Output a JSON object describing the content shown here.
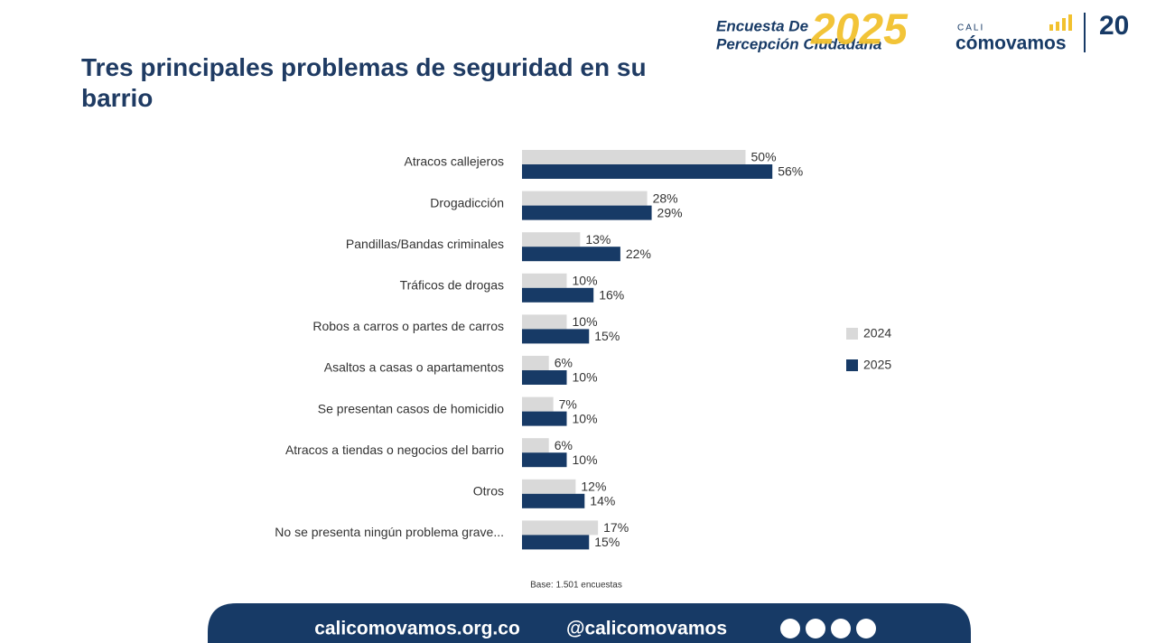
{
  "header": {
    "survey_line1": "Encuesta De",
    "survey_line2": "Percepción Ciudadana",
    "survey_year": "2025",
    "brand_city": "CALI",
    "brand_name": "cómovamos",
    "anniversary": "20"
  },
  "chart_data": {
    "type": "bar",
    "orientation": "horizontal",
    "title": "Tres principales problemas de seguridad en su barrio",
    "categories": [
      "Atracos callejeros",
      "Drogadicción",
      "Pandillas/Bandas criminales",
      "Tráficos de drogas",
      "Robos a carros o partes de carros",
      "Asaltos a casas o apartamentos",
      "Se presentan casos de homicidio",
      "Atracos a tiendas o negocios del barrio",
      "Otros",
      "No se presenta ningún problema grave..."
    ],
    "series": [
      {
        "name": "2024",
        "color": "#d9d9d9",
        "values": [
          50,
          28,
          13,
          10,
          10,
          6,
          7,
          6,
          12,
          17
        ],
        "value_labels": [
          "50%",
          "28%",
          "13%",
          "10%",
          "10%",
          "6%",
          "7%",
          "6%",
          "12%",
          "17%"
        ]
      },
      {
        "name": "2025",
        "color": "#173a66",
        "values": [
          56,
          29,
          22,
          16,
          15,
          10,
          10,
          10,
          14,
          15
        ],
        "value_labels": [
          "56%",
          "29%",
          "22%",
          "16%",
          "15%",
          "10%",
          "10%",
          "10%",
          "14%",
          "15%"
        ]
      }
    ],
    "note": "Base: 1.501 encuestas",
    "legend": "right"
  },
  "footer": {
    "website": "calicomovamos.org.co",
    "handle": "@calicomovamos"
  }
}
